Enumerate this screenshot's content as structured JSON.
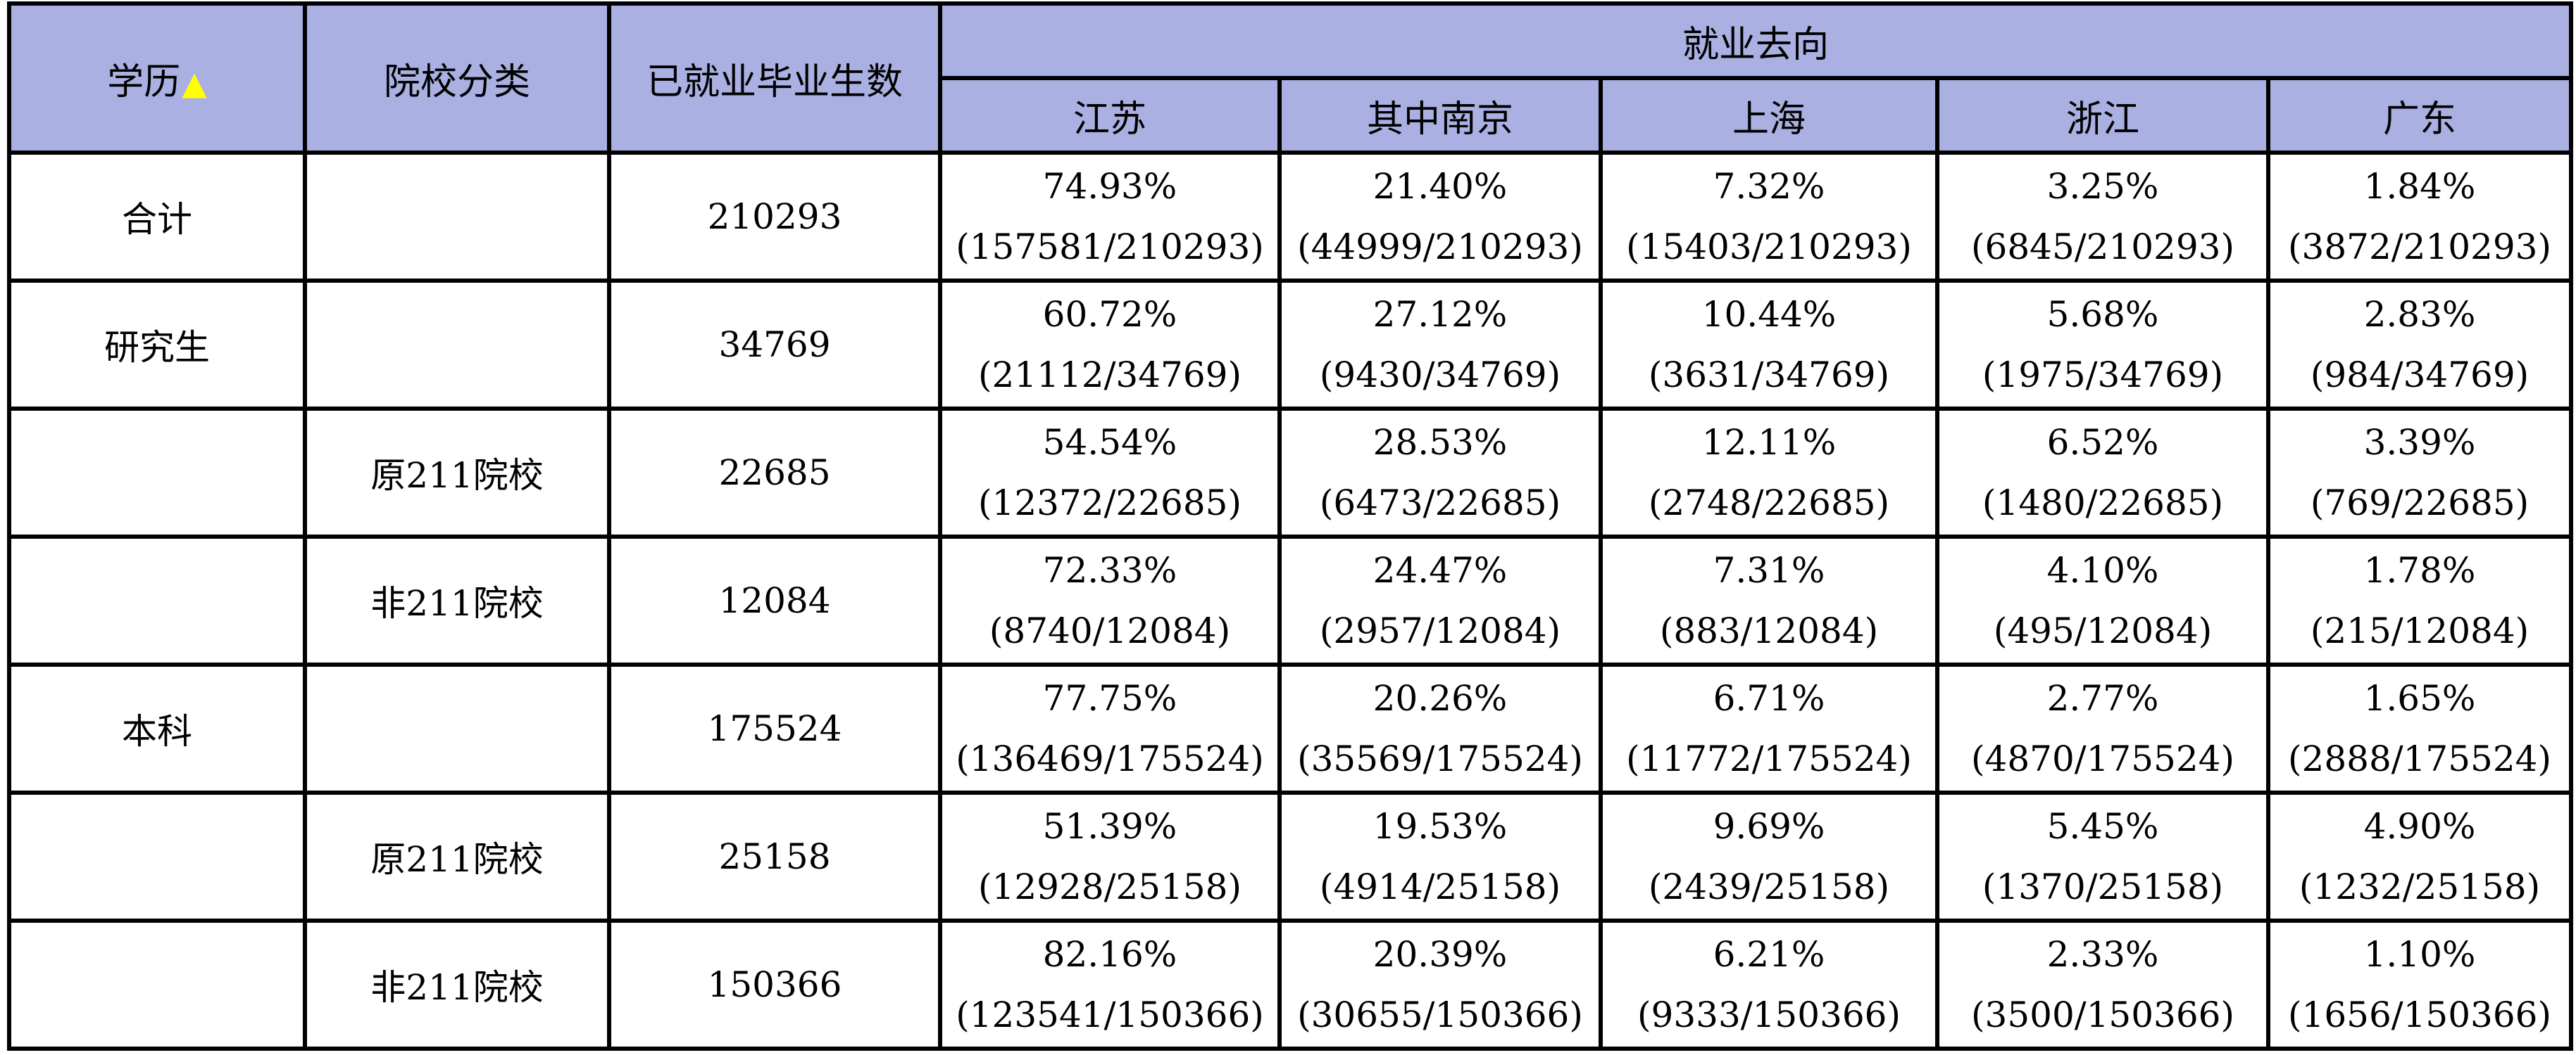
{
  "header": {
    "education": "学历",
    "sort_indicator": "▲",
    "school_type": "院校分类",
    "employed_count": "已就业毕业生数",
    "destination": "就业去向",
    "regions": [
      "江苏",
      "其中南京",
      "上海",
      "浙江",
      "广东"
    ]
  },
  "colors": {
    "header_bg": "#aab0e2",
    "sort_indicator": "#ffff00",
    "border": "#000000"
  },
  "rows": [
    {
      "education": "合计",
      "school_type": "",
      "employed": "210293",
      "cells": [
        {
          "pct": "74.93%",
          "ratio": "(157581/210293)"
        },
        {
          "pct": "21.40%",
          "ratio": "(44999/210293)"
        },
        {
          "pct": "7.32%",
          "ratio": "(15403/210293)"
        },
        {
          "pct": "3.25%",
          "ratio": "(6845/210293)"
        },
        {
          "pct": "1.84%",
          "ratio": "(3872/210293)"
        }
      ]
    },
    {
      "education": "研究生",
      "school_type": "",
      "employed": "34769",
      "cells": [
        {
          "pct": "60.72%",
          "ratio": "(21112/34769)"
        },
        {
          "pct": "27.12%",
          "ratio": "(9430/34769)"
        },
        {
          "pct": "10.44%",
          "ratio": "(3631/34769)"
        },
        {
          "pct": "5.68%",
          "ratio": "(1975/34769)"
        },
        {
          "pct": "2.83%",
          "ratio": "(984/34769)"
        }
      ]
    },
    {
      "education": "",
      "school_type": "原211院校",
      "employed": "22685",
      "cells": [
        {
          "pct": "54.54%",
          "ratio": "(12372/22685)"
        },
        {
          "pct": "28.53%",
          "ratio": "(6473/22685)"
        },
        {
          "pct": "12.11%",
          "ratio": "(2748/22685)"
        },
        {
          "pct": "6.52%",
          "ratio": "(1480/22685)"
        },
        {
          "pct": "3.39%",
          "ratio": "(769/22685)"
        }
      ]
    },
    {
      "education": "",
      "school_type": "非211院校",
      "employed": "12084",
      "cells": [
        {
          "pct": "72.33%",
          "ratio": "(8740/12084)"
        },
        {
          "pct": "24.47%",
          "ratio": "(2957/12084)"
        },
        {
          "pct": "7.31%",
          "ratio": "(883/12084)"
        },
        {
          "pct": "4.10%",
          "ratio": "(495/12084)"
        },
        {
          "pct": "1.78%",
          "ratio": "(215/12084)"
        }
      ]
    },
    {
      "education": "本科",
      "school_type": "",
      "employed": "175524",
      "cells": [
        {
          "pct": "77.75%",
          "ratio": "(136469/175524)"
        },
        {
          "pct": "20.26%",
          "ratio": "(35569/175524)"
        },
        {
          "pct": "6.71%",
          "ratio": "(11772/175524)"
        },
        {
          "pct": "2.77%",
          "ratio": "(4870/175524)"
        },
        {
          "pct": "1.65%",
          "ratio": "(2888/175524)"
        }
      ]
    },
    {
      "education": "",
      "school_type": "原211院校",
      "employed": "25158",
      "cells": [
        {
          "pct": "51.39%",
          "ratio": "(12928/25158)"
        },
        {
          "pct": "19.53%",
          "ratio": "(4914/25158)"
        },
        {
          "pct": "9.69%",
          "ratio": "(2439/25158)"
        },
        {
          "pct": "5.45%",
          "ratio": "(1370/25158)"
        },
        {
          "pct": "4.90%",
          "ratio": "(1232/25158)"
        }
      ]
    },
    {
      "education": "",
      "school_type": "非211院校",
      "employed": "150366",
      "cells": [
        {
          "pct": "82.16%",
          "ratio": "(123541/150366)"
        },
        {
          "pct": "20.39%",
          "ratio": "(30655/150366)"
        },
        {
          "pct": "6.21%",
          "ratio": "(9333/150366)"
        },
        {
          "pct": "2.33%",
          "ratio": "(3500/150366)"
        },
        {
          "pct": "1.10%",
          "ratio": "(1656/150366)"
        }
      ]
    }
  ]
}
